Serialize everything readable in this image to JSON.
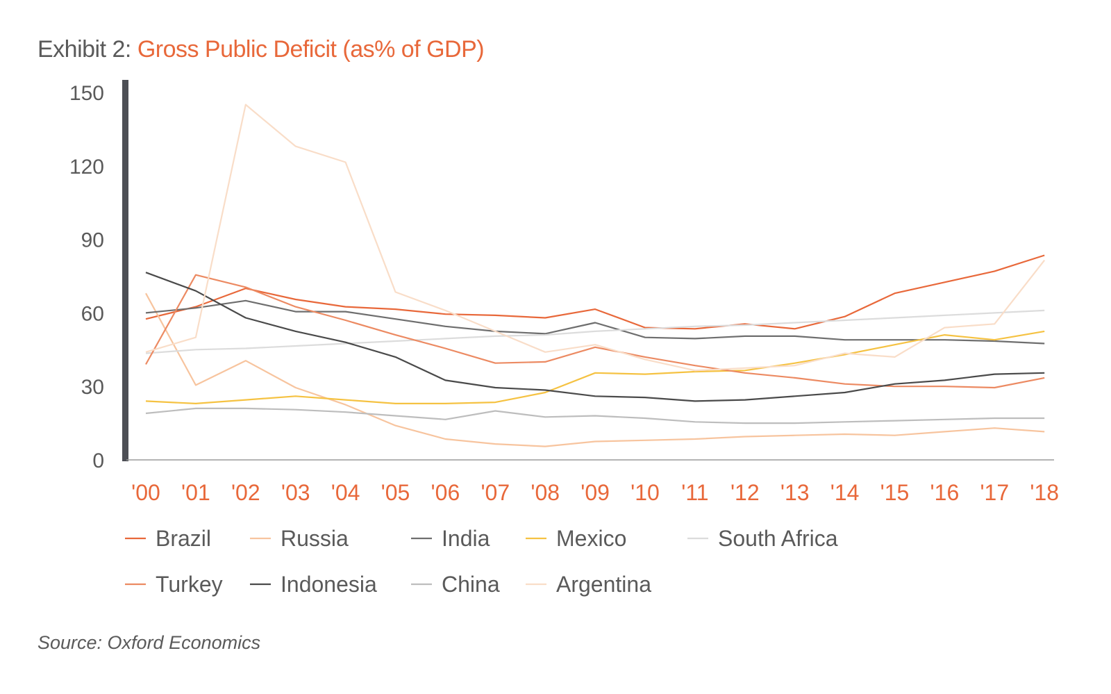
{
  "title": {
    "prefix": "Exhibit 2:",
    "main": "Gross Public Deficit (as% of GDP)"
  },
  "source": "Source: Oxford Economics",
  "chart_data": {
    "type": "line",
    "title": "Gross Public Deficit (as% of GDP)",
    "xlabel": "",
    "ylabel": "",
    "x": [
      "'00",
      "'01",
      "'02",
      "'03",
      "'04",
      "'05",
      "'06",
      "'07",
      "'08",
      "'09",
      "'10",
      "'11",
      "'12",
      "'13",
      "'14",
      "'15",
      "'16",
      "'17",
      "'18"
    ],
    "yticks": [
      "0",
      "30",
      "60",
      "90",
      "120",
      "150"
    ],
    "ylim": [
      0,
      150
    ],
    "grid": false,
    "legend_position": "bottom",
    "series": [
      {
        "name": "Brazil",
        "color": "#e8683a",
        "values": [
          57.5,
          62.5,
          70,
          65.5,
          62.5,
          61.5,
          59.5,
          59,
          58,
          61.5,
          54,
          53.5,
          55.5,
          53.5,
          58.5,
          68,
          72.5,
          77,
          83.5
        ]
      },
      {
        "name": "Russia",
        "color": "#f7c49e",
        "values": [
          68,
          30.5,
          40.5,
          29.5,
          22.5,
          14,
          8.5,
          6.5,
          5.5,
          7.5,
          8,
          8.5,
          9.5,
          10,
          10.5,
          10,
          11.5,
          13,
          11.5
        ]
      },
      {
        "name": "India",
        "color": "#6e6e6e",
        "values": [
          60,
          62,
          65,
          60.5,
          60.5,
          57.5,
          54.5,
          52.5,
          51.5,
          56,
          50,
          49.5,
          50.5,
          50.5,
          49,
          49,
          49,
          48.5,
          47.5
        ]
      },
      {
        "name": "Mexico",
        "color": "#f5c242",
        "values": [
          24,
          23,
          24.5,
          26,
          24.5,
          23,
          23,
          23.5,
          27.5,
          35.5,
          35,
          36,
          36.5,
          39.5,
          43,
          47,
          51,
          49,
          52.5
        ]
      },
      {
        "name": "South Africa",
        "color": "#dcdcdc",
        "values": [
          43.5,
          45,
          45.5,
          46.5,
          47.5,
          48.5,
          49.5,
          50.5,
          51,
          52.5,
          53.5,
          54.5,
          55,
          56,
          57,
          58,
          59,
          60,
          61
        ]
      },
      {
        "name": "Turkey",
        "color": "#ec8a62",
        "values": [
          39,
          75.5,
          70.5,
          62.5,
          57,
          51,
          45.5,
          39.5,
          40,
          46,
          42,
          38.5,
          35.5,
          33.5,
          31,
          30,
          30,
          29.5,
          33.5
        ]
      },
      {
        "name": "Indonesia",
        "color": "#4a4a4a",
        "values": [
          76.5,
          69,
          58,
          52.5,
          48,
          42,
          32.5,
          29.5,
          28.5,
          26,
          25.5,
          24,
          24.5,
          26,
          27.5,
          31,
          32.5,
          35,
          35.5
        ]
      },
      {
        "name": "China",
        "color": "#bdbdbd",
        "values": [
          19,
          21,
          21,
          20.5,
          19.5,
          18,
          16.5,
          20,
          17.5,
          18,
          17,
          15.5,
          15,
          15,
          15.5,
          16,
          16.5,
          17,
          17
        ]
      },
      {
        "name": "Argentina",
        "color": "#f9ddc8",
        "values": [
          44,
          50,
          145,
          128,
          121.5,
          68.5,
          61,
          52.5,
          44,
          47,
          41,
          36.5,
          37.5,
          38.5,
          43.5,
          42,
          54,
          55.5,
          81.5
        ]
      }
    ]
  }
}
